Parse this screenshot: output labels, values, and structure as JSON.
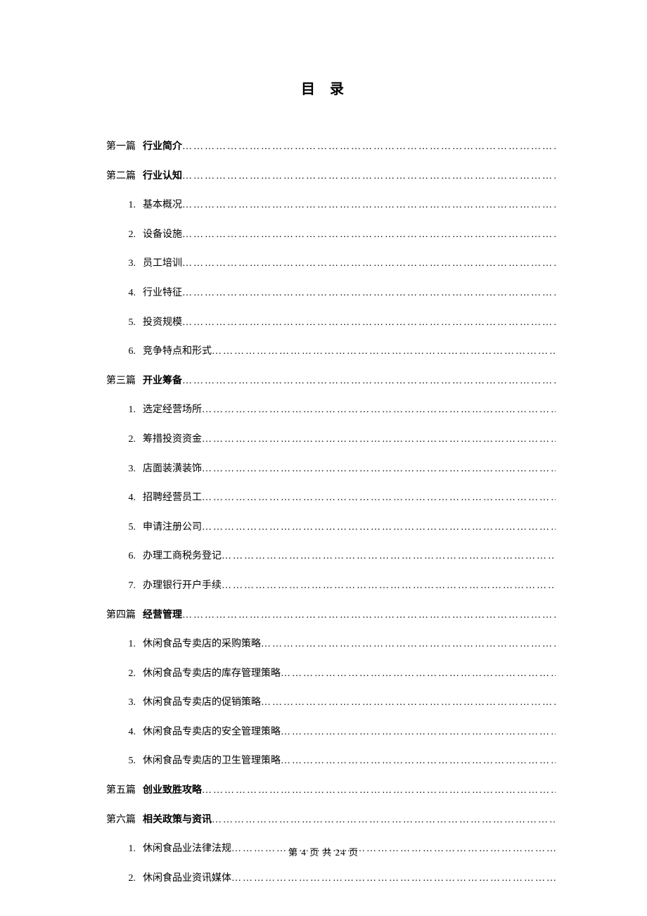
{
  "title": "目 录",
  "entries": [
    {
      "label": "第一篇",
      "text": "行业简介",
      "bold": true,
      "sub": false
    },
    {
      "label": "第二篇",
      "text": "行业认知",
      "bold": true,
      "sub": false
    },
    {
      "label": "1.",
      "text": "基本概况",
      "bold": false,
      "sub": true
    },
    {
      "label": "2.",
      "text": "设备设施",
      "bold": false,
      "sub": true
    },
    {
      "label": "3.",
      "text": "员工培训",
      "bold": false,
      "sub": true
    },
    {
      "label": "4.",
      "text": "行业特征",
      "bold": false,
      "sub": true
    },
    {
      "label": "5.",
      "text": "投资规模",
      "bold": false,
      "sub": true
    },
    {
      "label": "6.",
      "text": "竞争特点和形式",
      "bold": false,
      "sub": true
    },
    {
      "label": "第三篇",
      "text": "开业筹备",
      "bold": true,
      "sub": false
    },
    {
      "label": "1.",
      "text": "选定经营场所",
      "bold": false,
      "sub": true
    },
    {
      "label": "2.",
      "text": "筹措投资资金",
      "bold": false,
      "sub": true
    },
    {
      "label": "3.",
      "text": "店面装潢装饰",
      "bold": false,
      "sub": true
    },
    {
      "label": "4.",
      "text": "招聘经营员工",
      "bold": false,
      "sub": true
    },
    {
      "label": "5.",
      "text": "申请注册公司",
      "bold": false,
      "sub": true
    },
    {
      "label": "6.",
      "text": "办理工商税务登记",
      "bold": false,
      "sub": true
    },
    {
      "label": "7.",
      "text": "办理银行开户手续",
      "bold": false,
      "sub": true
    },
    {
      "label": "第四篇",
      "text": "经营管理",
      "bold": true,
      "sub": false
    },
    {
      "label": "1.",
      "text": "休闲食品专卖店的采购策略",
      "bold": false,
      "sub": true
    },
    {
      "label": "2.",
      "text": "休闲食品专卖店的库存管理策略",
      "bold": false,
      "sub": true
    },
    {
      "label": "3.",
      "text": "休闲食品专卖店的促销策略",
      "bold": false,
      "sub": true
    },
    {
      "label": "4.",
      "text": "休闲食品专卖店的安全管理策略",
      "bold": false,
      "sub": true
    },
    {
      "label": "5.",
      "text": "休闲食品专卖店的卫生管理策略",
      "bold": false,
      "sub": true
    },
    {
      "label": "第五篇",
      "text": "创业致胜攻略",
      "bold": true,
      "sub": false
    },
    {
      "label": "第六篇",
      "text": "相关政策与资讯",
      "bold": true,
      "sub": false
    },
    {
      "label": "1.",
      "text": "休闲食品业法律法规",
      "bold": false,
      "sub": true
    },
    {
      "label": "2.",
      "text": "休闲食品业资讯媒体",
      "bold": false,
      "sub": true
    }
  ],
  "footer": {
    "prefix": "第",
    "current": "4",
    "middle": "页 共",
    "total": "24",
    "suffix": "页"
  }
}
